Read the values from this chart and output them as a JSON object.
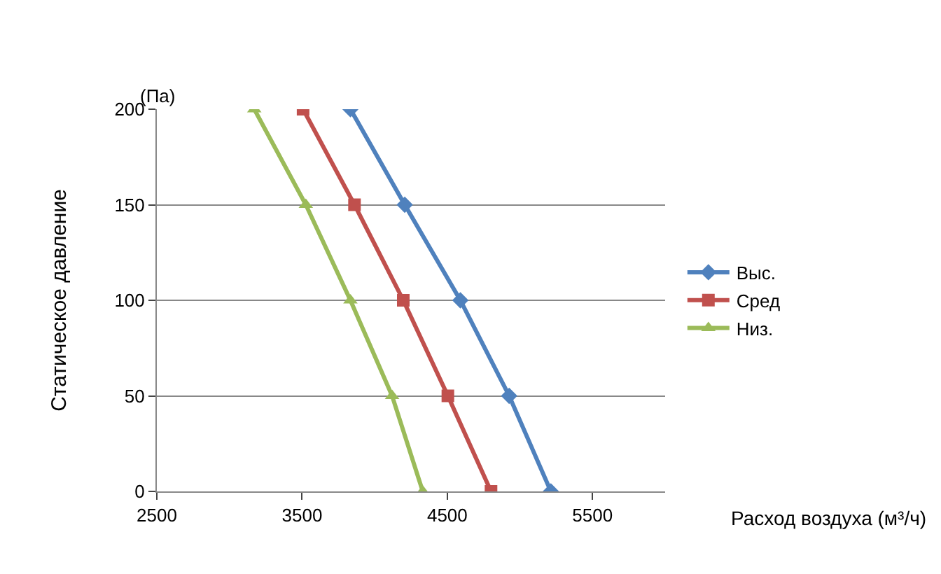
{
  "chart_data": {
    "type": "line",
    "xlabel": "Расход воздуха (м³/ч)",
    "ylabel": "Статическое давление",
    "annotations": [
      "(Па)"
    ],
    "xlim": [
      2500,
      6000
    ],
    "xticks": [
      2500,
      3500,
      4500,
      5500
    ],
    "ylim": [
      0,
      200
    ],
    "yticks": [
      0,
      50,
      100,
      150,
      200
    ],
    "grid": "y",
    "legend": "right",
    "series": [
      {
        "name": "Выс.",
        "color": "#4f81bd",
        "marker": "diamond",
        "x": [
          3833,
          4207,
          4590,
          4926,
          5213
        ],
        "values": [
          200,
          150,
          100,
          50,
          0
        ]
      },
      {
        "name": "Сред",
        "color": "#c0504d",
        "marker": "square",
        "x": [
          3507,
          3861,
          4197,
          4504,
          4801
        ],
        "values": [
          200,
          150,
          100,
          50,
          0
        ]
      },
      {
        "name": "Низ.",
        "color": "#9bbb59",
        "marker": "triangle",
        "x": [
          3171,
          3526,
          3833,
          4120,
          4331
        ],
        "values": [
          200,
          150,
          100,
          50,
          0
        ]
      }
    ]
  }
}
